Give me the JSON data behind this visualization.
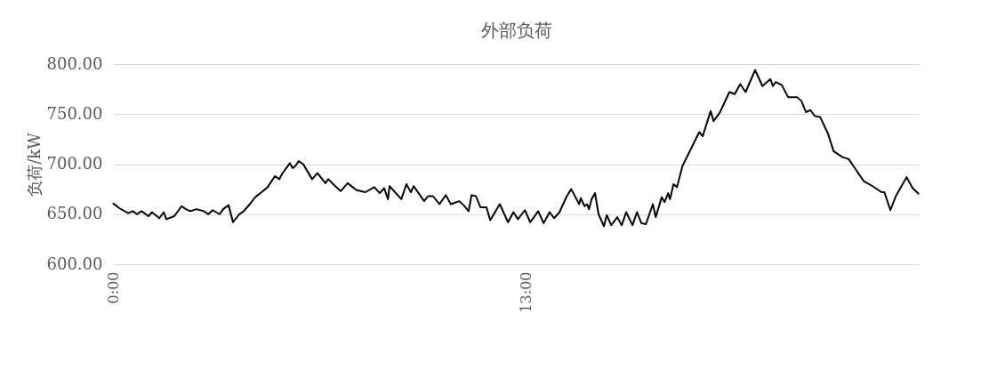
{
  "chart_data": {
    "type": "line",
    "title": "外部负荷",
    "ylabel": "负荷/kW",
    "x": [
      0,
      0.2,
      0.48,
      0.62,
      0.76,
      0.9,
      1.12,
      1.23,
      1.46,
      1.6,
      1.68,
      1.93,
      2.16,
      2.3,
      2.44,
      2.63,
      2.86,
      3.0,
      3.14,
      3.36,
      3.47,
      3.64,
      3.78,
      3.98,
      4.12,
      4.31,
      4.48,
      4.68,
      4.87,
      5.1,
      5.24,
      5.32,
      5.57,
      5.66,
      5.74,
      5.85,
      5.99,
      6.27,
      6.44,
      6.69,
      6.78,
      7.0,
      7.17,
      7.39,
      7.67,
      7.95,
      8.23,
      8.4,
      8.54,
      8.66,
      8.71,
      9.08,
      9.24,
      9.38,
      9.47,
      9.8,
      9.92,
      10.08,
      10.28,
      10.48,
      10.64,
      10.9,
      11.04,
      11.2,
      11.29,
      11.43,
      11.57,
      11.76,
      11.88,
      12.18,
      12.44,
      12.61,
      12.75,
      12.97,
      13.14,
      13.39,
      13.56,
      13.75,
      13.89,
      14.06,
      14.29,
      14.43,
      14.68,
      14.73,
      14.85,
      14.93,
      14.99,
      15.07,
      15.18,
      15.29,
      15.46,
      15.55,
      15.69,
      15.88,
      16.02,
      16.16,
      16.36,
      16.5,
      16.64,
      16.78,
      17.0,
      17.09,
      17.28,
      17.37,
      17.48,
      17.54,
      17.65,
      17.76,
      17.93,
      18.18,
      18.46,
      18.57,
      18.82,
      18.91,
      19.1,
      19.41,
      19.58,
      19.75,
      19.92,
      20.22,
      20.45,
      20.7,
      20.78,
      20.87,
      21.06,
      21.26,
      21.54,
      21.68,
      21.82,
      21.96,
      22.1,
      22.27,
      22.52,
      22.69,
      22.97,
      23.17,
      23.36,
      23.64,
      23.92,
      24.2,
      24.29,
      24.48,
      24.65,
      24.99,
      25.18,
      25.38
    ],
    "series": [
      {
        "color": "#000000",
        "values": [
          661,
          656,
          651,
          653,
          650,
          653,
          648,
          652,
          646,
          652,
          645,
          648,
          658,
          655,
          653,
          655,
          653,
          650,
          654,
          650,
          655,
          659,
          642,
          650,
          653,
          660,
          667,
          672,
          677,
          688,
          685,
          690,
          701,
          696,
          698,
          703,
          700,
          685,
          691,
          681,
          685,
          678,
          673,
          681,
          674,
          672,
          677,
          671,
          676,
          665,
          678,
          665,
          680,
          672,
          678,
          663,
          668,
          668,
          660,
          669,
          660,
          663,
          659,
          653,
          669,
          668,
          657,
          657,
          644,
          660,
          642,
          652,
          645,
          654,
          642,
          653,
          641,
          652,
          646,
          652,
          668,
          675,
          660,
          666,
          658,
          660,
          655,
          665,
          671,
          650,
          638,
          649,
          639,
          647,
          639,
          652,
          639,
          652,
          641,
          640,
          660,
          647,
          667,
          662,
          671,
          665,
          680,
          677,
          698,
          714,
          732,
          728,
          753,
          743,
          751,
          772,
          770,
          780,
          772,
          794,
          778,
          785,
          778,
          782,
          779,
          767,
          767,
          763,
          752,
          754,
          748,
          747,
          730,
          713,
          707,
          705,
          696,
          683,
          678,
          672,
          672,
          654,
          668,
          687,
          676,
          670
        ]
      }
    ],
    "xlim": [
      0,
      25.4
    ],
    "xticks": [
      {
        "value": 0,
        "label": "0:00"
      },
      {
        "value": 13,
        "label": "13:00"
      }
    ],
    "ylim": [
      600,
      800
    ],
    "yticks": [
      {
        "value": 600,
        "label": "600.00"
      },
      {
        "value": 650,
        "label": "650.00"
      },
      {
        "value": 700,
        "label": "700.00"
      },
      {
        "value": 750,
        "label": "750.00"
      },
      {
        "value": 800,
        "label": "800.00"
      }
    ],
    "grid": "y",
    "marker": "none",
    "line_style": "solid"
  }
}
